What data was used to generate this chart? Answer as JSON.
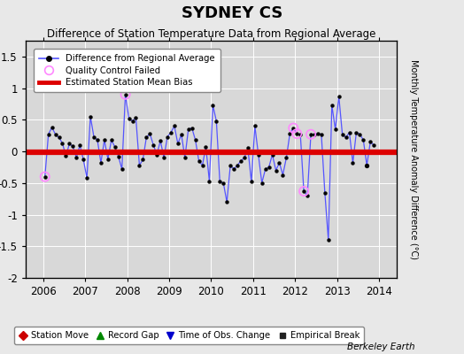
{
  "title": "SYDNEY CS",
  "subtitle": "Difference of Station Temperature Data from Regional Average",
  "ylabel": "Monthly Temperature Anomaly Difference (°C)",
  "xlabel_years": [
    2006,
    2007,
    2008,
    2009,
    2010,
    2011,
    2012,
    2013,
    2014
  ],
  "xlim": [
    2005.58,
    2014.42
  ],
  "ylim": [
    -2.0,
    1.75
  ],
  "yticks": [
    -2.0,
    -1.5,
    -1.0,
    -0.5,
    0.0,
    0.5,
    1.0,
    1.5
  ],
  "ytick_labels": [
    "-2",
    "-1.5",
    "-1",
    "-0.5",
    "0",
    "0.5",
    "1",
    "1.5"
  ],
  "bias_line": -0.02,
  "background_color": "#e8e8e8",
  "plot_bg_color": "#d8d8d8",
  "line_color": "#5555ff",
  "bias_color": "#dd0000",
  "watermark": "Berkeley Earth",
  "series": [
    [
      2006.042,
      -0.4
    ],
    [
      2006.125,
      0.27
    ],
    [
      2006.208,
      0.38
    ],
    [
      2006.292,
      0.27
    ],
    [
      2006.375,
      0.22
    ],
    [
      2006.458,
      0.13
    ],
    [
      2006.542,
      -0.07
    ],
    [
      2006.625,
      0.12
    ],
    [
      2006.708,
      0.08
    ],
    [
      2006.792,
      -0.1
    ],
    [
      2006.875,
      0.1
    ],
    [
      2006.958,
      -0.13
    ],
    [
      2007.042,
      -0.42
    ],
    [
      2007.125,
      0.55
    ],
    [
      2007.208,
      0.23
    ],
    [
      2007.292,
      0.18
    ],
    [
      2007.375,
      -0.18
    ],
    [
      2007.458,
      0.18
    ],
    [
      2007.542,
      -0.12
    ],
    [
      2007.625,
      0.18
    ],
    [
      2007.708,
      0.07
    ],
    [
      2007.792,
      -0.08
    ],
    [
      2007.875,
      -0.28
    ],
    [
      2007.958,
      0.9
    ],
    [
      2008.042,
      0.52
    ],
    [
      2008.125,
      0.48
    ],
    [
      2008.208,
      0.53
    ],
    [
      2008.292,
      -0.22
    ],
    [
      2008.375,
      -0.13
    ],
    [
      2008.458,
      0.22
    ],
    [
      2008.542,
      0.28
    ],
    [
      2008.625,
      0.1
    ],
    [
      2008.708,
      -0.05
    ],
    [
      2008.792,
      0.17
    ],
    [
      2008.875,
      -0.1
    ],
    [
      2008.958,
      0.23
    ],
    [
      2009.042,
      0.3
    ],
    [
      2009.125,
      0.4
    ],
    [
      2009.208,
      0.12
    ],
    [
      2009.292,
      0.27
    ],
    [
      2009.375,
      -0.1
    ],
    [
      2009.458,
      0.35
    ],
    [
      2009.542,
      0.37
    ],
    [
      2009.625,
      0.18
    ],
    [
      2009.708,
      -0.15
    ],
    [
      2009.792,
      -0.22
    ],
    [
      2009.875,
      0.07
    ],
    [
      2009.958,
      -0.47
    ],
    [
      2010.042,
      0.73
    ],
    [
      2010.125,
      0.48
    ],
    [
      2010.208,
      -0.48
    ],
    [
      2010.292,
      -0.5
    ],
    [
      2010.375,
      -0.8
    ],
    [
      2010.458,
      -0.22
    ],
    [
      2010.542,
      -0.28
    ],
    [
      2010.625,
      -0.22
    ],
    [
      2010.708,
      -0.15
    ],
    [
      2010.792,
      -0.1
    ],
    [
      2010.875,
      0.05
    ],
    [
      2010.958,
      -0.48
    ],
    [
      2011.042,
      0.4
    ],
    [
      2011.125,
      -0.05
    ],
    [
      2011.208,
      -0.5
    ],
    [
      2011.292,
      -0.28
    ],
    [
      2011.375,
      -0.25
    ],
    [
      2011.458,
      -0.05
    ],
    [
      2011.542,
      -0.3
    ],
    [
      2011.625,
      -0.18
    ],
    [
      2011.708,
      -0.37
    ],
    [
      2011.792,
      -0.1
    ],
    [
      2011.875,
      0.28
    ],
    [
      2011.958,
      0.37
    ],
    [
      2012.042,
      0.28
    ],
    [
      2012.125,
      0.27
    ],
    [
      2012.208,
      -0.63
    ],
    [
      2012.292,
      -0.7
    ],
    [
      2012.375,
      0.27
    ],
    [
      2012.458,
      0.27
    ],
    [
      2012.542,
      0.28
    ],
    [
      2012.625,
      0.27
    ],
    [
      2012.708,
      -0.65
    ],
    [
      2012.792,
      -1.4
    ],
    [
      2012.875,
      0.73
    ],
    [
      2012.958,
      0.35
    ],
    [
      2013.042,
      0.87
    ],
    [
      2013.125,
      0.27
    ],
    [
      2013.208,
      0.22
    ],
    [
      2013.292,
      0.3
    ],
    [
      2013.375,
      -0.18
    ],
    [
      2013.458,
      0.3
    ],
    [
      2013.542,
      0.27
    ],
    [
      2013.625,
      0.18
    ],
    [
      2013.708,
      -0.22
    ],
    [
      2013.792,
      0.15
    ],
    [
      2013.875,
      0.1
    ]
  ],
  "qc_failed": [
    [
      2006.042,
      -0.4
    ],
    [
      2007.958,
      0.9
    ],
    [
      2011.958,
      0.37
    ],
    [
      2012.042,
      0.28
    ],
    [
      2012.208,
      -0.63
    ],
    [
      2012.375,
      0.27
    ]
  ],
  "isolated_dot": [
    2013.708,
    -0.22
  ],
  "legend1_items": [
    {
      "label": "Difference from Regional Average"
    },
    {
      "label": "Quality Control Failed"
    },
    {
      "label": "Estimated Station Mean Bias"
    }
  ],
  "legend2_items": [
    {
      "label": "Station Move"
    },
    {
      "label": "Record Gap"
    },
    {
      "label": "Time of Obs. Change"
    },
    {
      "label": "Empirical Break"
    }
  ]
}
